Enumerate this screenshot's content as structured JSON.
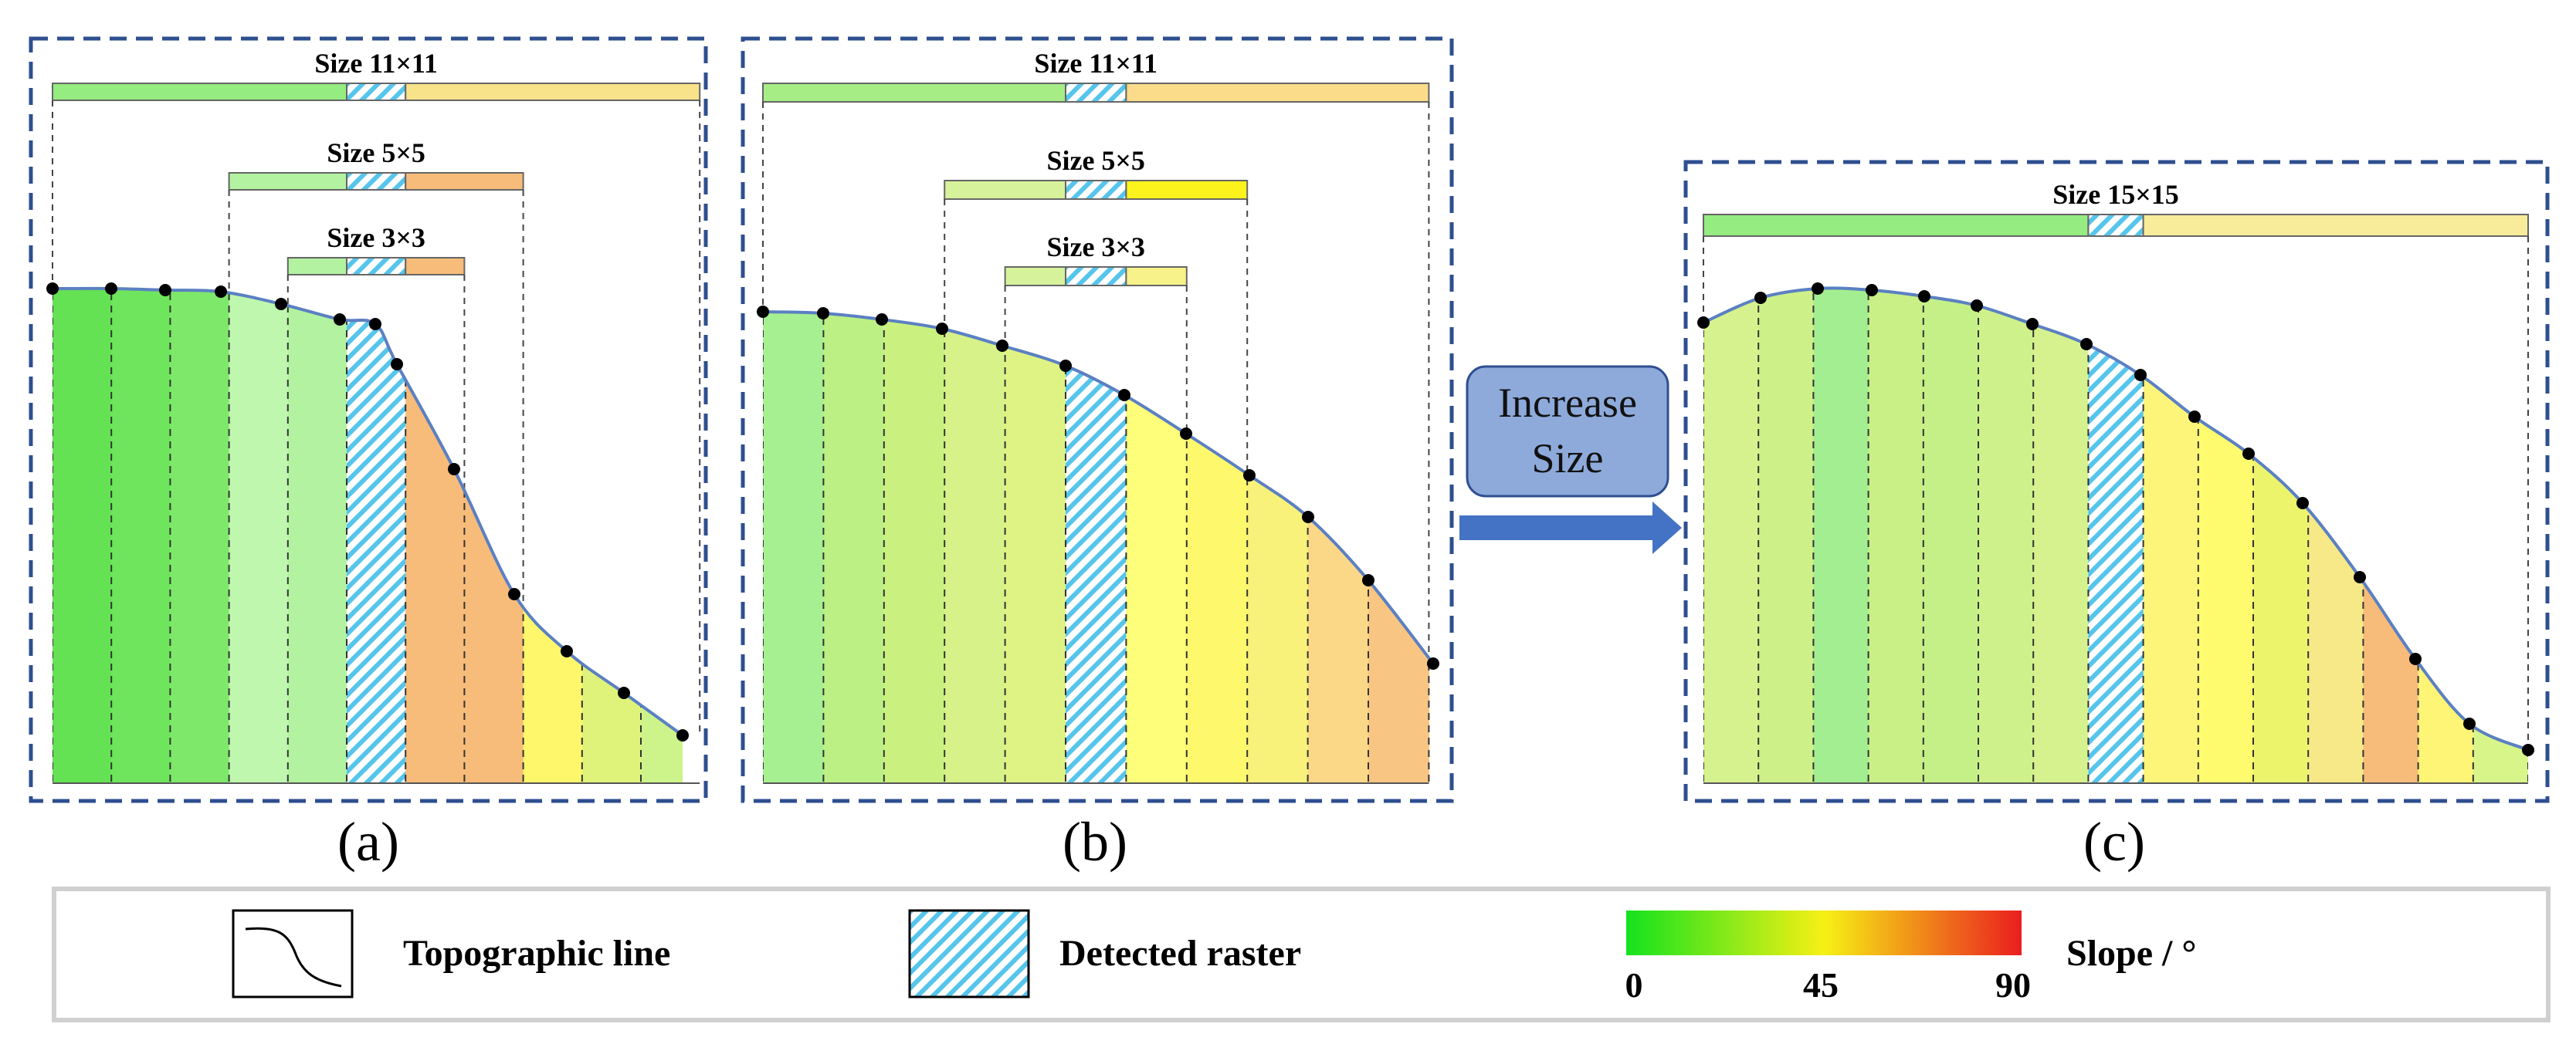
{
  "panels": [
    {
      "caption": "(a)",
      "windows": [
        {
          "label": "Size 11×11",
          "left_color": "#95ec80",
          "right_color": "#f8e28a"
        },
        {
          "label": "Size 5×5",
          "left_color": "#b2f2a0",
          "right_color": "#f7bc7a"
        },
        {
          "label": "Size 3×3",
          "left_color": "#b2f2a0",
          "right_color": "#f7bc7a"
        }
      ],
      "columns": [
        {
          "color": "#64e254"
        },
        {
          "color": "#6ee55c"
        },
        {
          "color": "#7ee86a"
        },
        {
          "color": "#bff7af"
        },
        {
          "color": "#b2f2a0"
        },
        {
          "color": "hatch",
          "detected": true
        },
        {
          "color": "#f7bc7a"
        },
        {
          "color": "#f7bc7a"
        },
        {
          "color": "#fef76c"
        },
        {
          "color": "#dff37a"
        },
        {
          "color": "#cdf48a"
        }
      ]
    },
    {
      "caption": "(b)",
      "windows": [
        {
          "label": "Size 11×11",
          "left_color": "#a6ed86",
          "right_color": "#fbdc8a"
        },
        {
          "label": "Size 5×5",
          "left_color": "#d6f29a",
          "right_color": "#fcf21c"
        },
        {
          "label": "Size 3×3",
          "left_color": "#d6f29a",
          "right_color": "#f7f28a"
        }
      ],
      "columns": [
        {
          "color": "#a6f091"
        },
        {
          "color": "#bdf084"
        },
        {
          "color": "#caf17f"
        },
        {
          "color": "#d6f289"
        },
        {
          "color": "#dff384"
        },
        {
          "color": "hatch",
          "detected": true
        },
        {
          "color": "#fefe7a"
        },
        {
          "color": "#fef86c"
        },
        {
          "color": "#f8f27a"
        },
        {
          "color": "#fad887"
        },
        {
          "color": "#f9c582"
        }
      ]
    },
    {
      "caption": "(c)",
      "windows": [
        {
          "label": "Size 15×15",
          "left_color": "#95ec80",
          "right_color": "#f8ec9a"
        }
      ],
      "columns": [
        {
          "color": "#d6f28e"
        },
        {
          "color": "#cdf188"
        },
        {
          "color": "#a3ee90"
        },
        {
          "color": "#c8f087"
        },
        {
          "color": "#c4f087"
        },
        {
          "color": "#cff18b"
        },
        {
          "color": "#d6f28e"
        },
        {
          "color": "hatch",
          "detected": true
        },
        {
          "color": "#fcf57a"
        },
        {
          "color": "#fefb6e"
        },
        {
          "color": "#ecf46c"
        },
        {
          "color": "#f7e987"
        },
        {
          "color": "#f7bc7a"
        },
        {
          "color": "#fef476"
        },
        {
          "color": "#d8f58a"
        }
      ]
    }
  ],
  "button": {
    "line1": "Increase",
    "line2": "Size"
  },
  "legend": {
    "line_label": "Topographic line",
    "raster_label": "Detected raster",
    "slope_label": "Slope / °",
    "ticks": [
      "0",
      "45",
      "90"
    ],
    "gradient": [
      "#14e21e",
      "#f6f015",
      "#ea1e1e"
    ]
  },
  "colors": {
    "frame": "#2e4f8f",
    "curve": "#5b80c2",
    "hatch": "#56c5ec",
    "arrow": "#4472c4",
    "button_fill": "#8eaadb"
  }
}
